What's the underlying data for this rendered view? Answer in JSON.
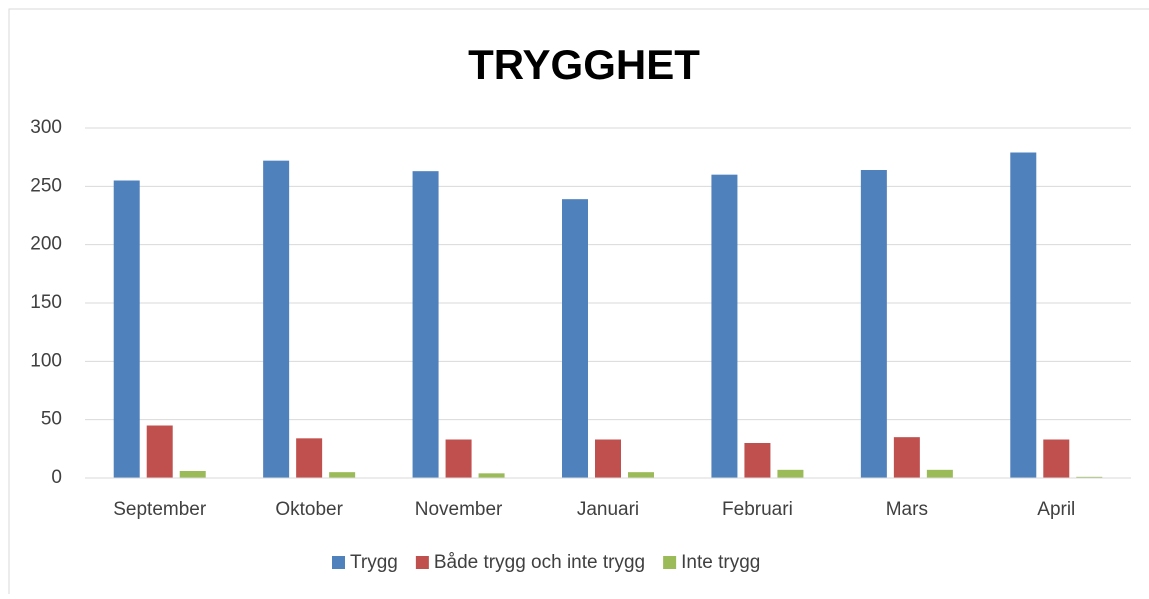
{
  "chart_data": {
    "type": "bar",
    "title": "TRYGGHET",
    "categories": [
      "September",
      "Oktober",
      "November",
      "Januari",
      "Februari",
      "Mars",
      "April"
    ],
    "series": [
      {
        "name": "Trygg",
        "color": "#4f81bd",
        "values": [
          255,
          272,
          263,
          239,
          260,
          264,
          279
        ]
      },
      {
        "name": "Både trygg och inte trygg",
        "color": "#c0504d",
        "values": [
          45,
          34,
          33,
          33,
          30,
          35,
          33
        ]
      },
      {
        "name": "Inte trygg",
        "color": "#9bbb59",
        "values": [
          6,
          5,
          4,
          5,
          7,
          7,
          1
        ]
      }
    ],
    "ylim": [
      0,
      300
    ],
    "yticks": [
      0,
      50,
      100,
      150,
      200,
      250,
      300
    ],
    "grid": true,
    "legend": "bottom"
  }
}
